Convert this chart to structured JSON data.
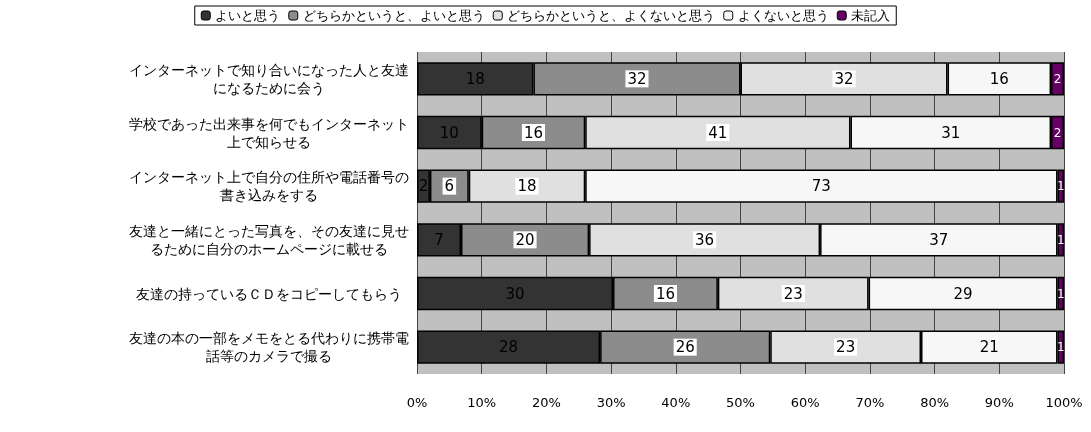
{
  "chart_data": {
    "type": "bar",
    "orientation": "horizontal",
    "stacked": true,
    "categories": [
      "インターネットで知り合いになった人と友達になるために会う",
      "学校であった出来事を何でもインターネット上で知らせる",
      "インターネット上で自分の住所や電話番号の書き込みをする",
      "友達と一緒にとった写真を、その友達に見せるために自分のホームページに載せる",
      "友達の持っているＣＤをコピーしてもらう",
      "友達の本の一部をメモをとる代わりに携帯電話等のカメラで撮る"
    ],
    "series": [
      {
        "name": "よいと思う",
        "color": "#333333",
        "values": [
          18,
          10,
          2,
          6.8,
          30.3,
          28.3
        ],
        "value_labels": [
          "18",
          "10",
          "2",
          "7",
          "30",
          "28"
        ]
      },
      {
        "name": "どちらかというと、よいと思う",
        "color": "#8c8c8c",
        "values": [
          32,
          16,
          6,
          19.8,
          16.2,
          26.3
        ],
        "value_labels": [
          "32",
          "16",
          "6",
          "20",
          "16",
          "26"
        ]
      },
      {
        "name": "どちらかというと、よくないと思う",
        "color": "#e0e0e0",
        "values": [
          32,
          41,
          18,
          35.7,
          23.3,
          23.3
        ],
        "value_labels": [
          "32",
          "41",
          "18",
          "36",
          "23",
          "23"
        ]
      },
      {
        "name": "よくないと思う",
        "color": "#f7f7f7",
        "values": [
          16,
          31,
          73,
          36.7,
          29.2,
          21.1
        ],
        "value_labels": [
          "16",
          "31",
          "73",
          "37",
          "29",
          "21"
        ]
      },
      {
        "name": "未記入",
        "color": "#660066",
        "values": [
          2,
          2,
          1,
          1,
          1,
          1
        ],
        "value_labels": [
          "2",
          "2",
          "1",
          "1",
          "1",
          "1"
        ]
      }
    ],
    "xlim": [
      0,
      100
    ],
    "xticks": [
      {
        "value": 0,
        "label": "0%"
      },
      {
        "value": 10,
        "label": "10%"
      },
      {
        "value": 20,
        "label": "20%"
      },
      {
        "value": 30,
        "label": "30%"
      },
      {
        "value": 40,
        "label": "40%"
      },
      {
        "value": 50,
        "label": "50%"
      },
      {
        "value": 60,
        "label": "60%"
      },
      {
        "value": 70,
        "label": "70%"
      },
      {
        "value": 80,
        "label": "80%"
      },
      {
        "value": 90,
        "label": "90%"
      },
      {
        "value": 100,
        "label": "100%"
      }
    ],
    "grid": "x",
    "legend": "top"
  }
}
